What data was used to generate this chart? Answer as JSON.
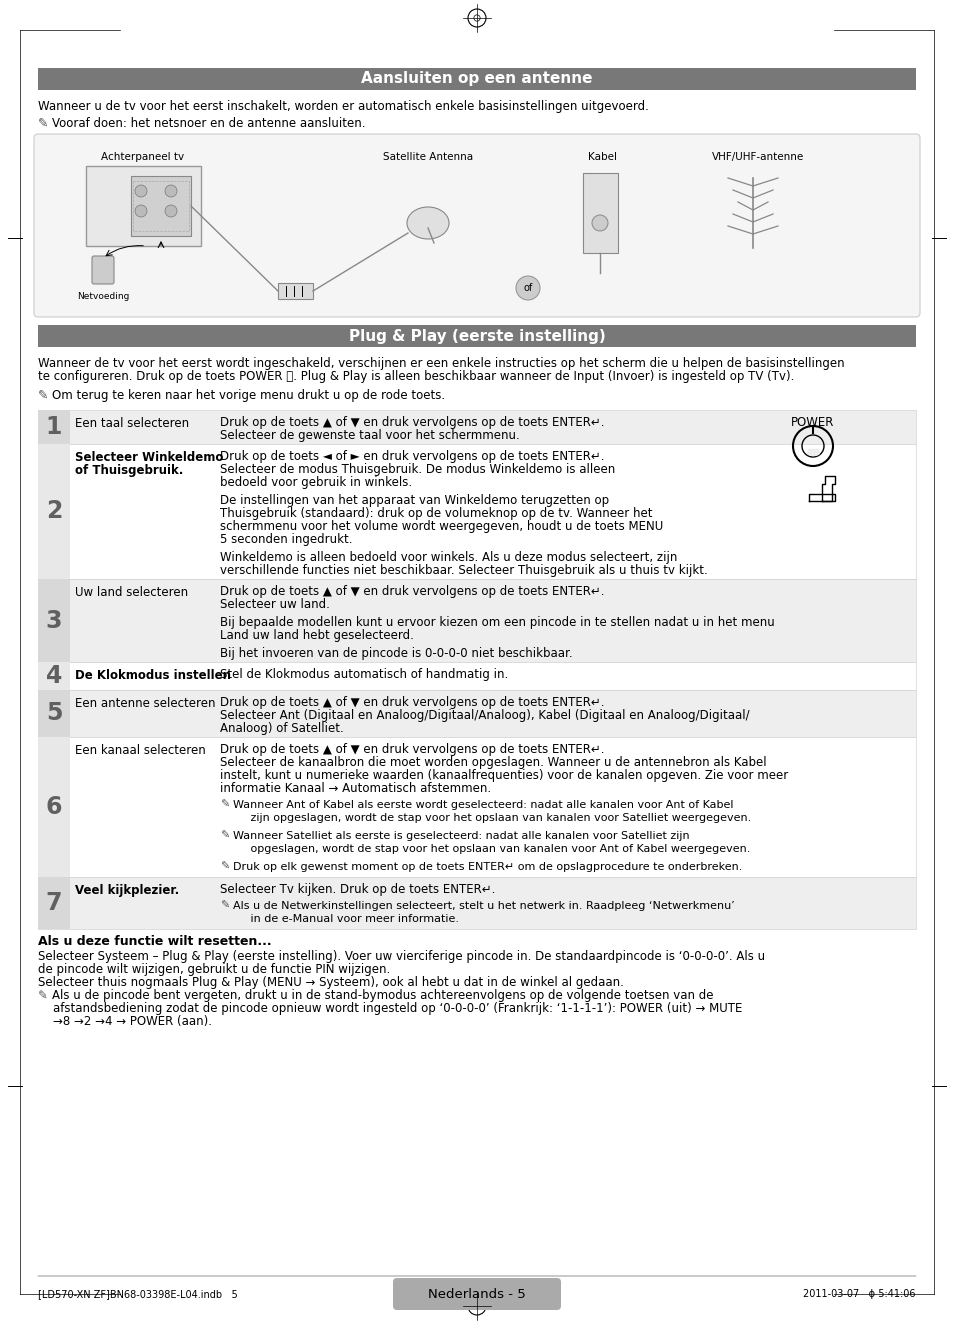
{
  "page_bg": "#ffffff",
  "header_bg": "#787878",
  "header_text_color": "#ffffff",
  "row_bg_light": "#eeeeee",
  "row_bg_white": "#ffffff",
  "footer_box_bg": "#aaaaaa",
  "footer_box_text": "Nederlands - 5",
  "footer_left": "[LD570-XN ZF]BN68-03398E-L04.indb   5",
  "footer_right": "2011-03-07   ϕ 5:41:06",
  "section1_title": "Aansluiten op een antenne",
  "section1_para1": "Wanneer u de tv voor het eerst inschakelt, worden er automatisch enkele basisinstellingen uitgevoerd.",
  "section1_note": "Vooraf doen: het netsnoer en de antenne aansluiten.",
  "section2_title": "Plug & Play (eerste instelling)",
  "section2_para1a": "Wanneer de tv voor het eerst wordt ingeschakeld, verschijnen er een enkele instructies op het scherm die u helpen de basisinstellingen",
  "section2_para1b": "te configureren. Druk op de toets POWER ⏻. Plug & Play is alleen beschikbaar wanneer de Input (Invoer) is ingesteld op TV (Tv).",
  "section2_note": "Om terug te keren naar het vorige menu drukt u op de rode toets.",
  "steps": [
    {
      "num": "1",
      "title": "Een taal selecteren",
      "title_bold": false,
      "content_lines": [
        {
          "text": "Druk op de toets ▲ of ▼ en druk vervolgens op de toets ENTER↵.",
          "type": "normal"
        },
        {
          "text": "Selecteer de gewenste taal voor het schermmenu.",
          "type": "normal"
        }
      ]
    },
    {
      "num": "2",
      "title": "Selecteer Winkeldemo\nof Thuisgebruik.",
      "title_bold": true,
      "content_lines": [
        {
          "text": "Druk op de toets ◄ of ► en druk vervolgens op de toets ENTER↵.",
          "type": "normal"
        },
        {
          "text": "Selecteer de modus Thuisgebruik. De modus Winkeldemo is alleen",
          "type": "normal"
        },
        {
          "text": "bedoeld voor gebruik in winkels.",
          "type": "normal"
        },
        {
          "text": "",
          "type": "space"
        },
        {
          "text": "De instellingen van het apparaat van Winkeldemo terugzetten op",
          "type": "normal"
        },
        {
          "text": "Thuisgebruik (standaard): druk op de volumeknop op de tv. Wanneer het",
          "type": "normal"
        },
        {
          "text": "schermmenu voor het volume wordt weergegeven, houdt u de toets MENU",
          "type": "normal"
        },
        {
          "text": "5 seconden ingedrukt.",
          "type": "normal"
        },
        {
          "text": "",
          "type": "space"
        },
        {
          "text": "Winkeldemo is alleen bedoeld voor winkels. Als u deze modus selecteert, zijn",
          "type": "normal"
        },
        {
          "text": "verschillende functies niet beschikbaar. Selecteer Thuisgebruik als u thuis tv kijkt.",
          "type": "normal"
        }
      ]
    },
    {
      "num": "3",
      "title": "Uw land selecteren",
      "title_bold": false,
      "content_lines": [
        {
          "text": "Druk op de toets ▲ of ▼ en druk vervolgens op de toets ENTER↵.",
          "type": "normal"
        },
        {
          "text": "Selecteer uw land.",
          "type": "normal"
        },
        {
          "text": "",
          "type": "space"
        },
        {
          "text": "Bij bepaalde modellen kunt u ervoor kiezen om een pincode in te stellen nadat u in het menu",
          "type": "normal"
        },
        {
          "text": "Land uw land hebt geselecteerd.",
          "type": "normal"
        },
        {
          "text": "",
          "type": "space"
        },
        {
          "text": "Bij het invoeren van de pincode is 0-0-0-0 niet beschikbaar.",
          "type": "normal"
        }
      ]
    },
    {
      "num": "4",
      "title": "De Klokmodus instellen",
      "title_bold": true,
      "content_lines": [
        {
          "text": "Stel de Klokmodus automatisch of handmatig in.",
          "type": "normal"
        }
      ]
    },
    {
      "num": "5",
      "title": "Een antenne selecteren",
      "title_bold": false,
      "content_lines": [
        {
          "text": "Druk op de toets ▲ of ▼ en druk vervolgens op de toets ENTER↵.",
          "type": "normal"
        },
        {
          "text": "Selecteer Ant (Digitaal en Analoog/Digitaal/Analoog), Kabel (Digitaal en Analoog/Digitaal/",
          "type": "normal"
        },
        {
          "text": "Analoog) of Satelliet.",
          "type": "normal"
        }
      ]
    },
    {
      "num": "6",
      "title": "Een kanaal selecteren",
      "title_bold": false,
      "content_lines": [
        {
          "text": "Druk op de toets ▲ of ▼ en druk vervolgens op de toets ENTER↵.",
          "type": "normal"
        },
        {
          "text": "Selecteer de kanaalbron die moet worden opgeslagen. Wanneer u de antennebron als Kabel",
          "type": "normal"
        },
        {
          "text": "instelt, kunt u numerieke waarden (kanaalfrequenties) voor de kanalen opgeven. Zie voor meer",
          "type": "normal"
        },
        {
          "text": "informatie Kanaal → Automatisch afstemmen.",
          "type": "normal"
        },
        {
          "text": "",
          "type": "space"
        },
        {
          "text": "Wanneer Ant of Kabel als eerste wordt geselecteerd: nadat alle kanalen voor Ant of Kabel",
          "type": "note"
        },
        {
          "text": "     zijn opgeslagen, wordt de stap voor het opslaan van kanalen voor Satelliet weergegeven.",
          "type": "note_cont"
        },
        {
          "text": "",
          "type": "space"
        },
        {
          "text": "Wanneer Satelliet als eerste is geselecteerd: nadat alle kanalen voor Satelliet zijn",
          "type": "note"
        },
        {
          "text": "     opgeslagen, wordt de stap voor het opslaan van kanalen voor Ant of Kabel weergegeven.",
          "type": "note_cont"
        },
        {
          "text": "",
          "type": "space"
        },
        {
          "text": "Druk op elk gewenst moment op de toets ENTER↵ om de opslagprocedure te onderbreken.",
          "type": "note"
        }
      ]
    },
    {
      "num": "7",
      "title": "Veel kijkplezier.",
      "title_bold": true,
      "content_lines": [
        {
          "text": "Selecteer Tv kijken. Druk op de toets ENTER↵.",
          "type": "normal"
        },
        {
          "text": "",
          "type": "space"
        },
        {
          "text": "Als u de Netwerkinstellingen selecteert, stelt u het netwerk in. Raadpleeg ‘Netwerkmenu’",
          "type": "note"
        },
        {
          "text": "     in de e-Manual voor meer informatie.",
          "type": "note_cont"
        }
      ]
    }
  ],
  "reset_title": "Als u deze functie wilt resetten...",
  "reset_lines": [
    "Selecteer Systeem – Plug & Play (eerste instelling). Voer uw vierciferige pincode in. De standaardpincode is ‘0-0-0-0’. Als u",
    "de pincode wilt wijzigen, gebruikt u de functie PIN wijzigen.",
    "Selecteer thuis nogmaals Plug & Play (MENU → Systeem), ook al hebt u dat in de winkel al gedaan.",
    "NOTE:Als u de pincode bent vergeten, drukt u in de stand-bymodus achtereenvolgens op de volgende toetsen van de",
    "    afstandsbediening zodat de pincode opnieuw wordt ingesteld op ‘0-0-0-0’ (Frankrijk: ‘1-1-1-1’): POWER (uit) → MUTE",
    "    →8 →2 →4 → POWER (aan)."
  ]
}
